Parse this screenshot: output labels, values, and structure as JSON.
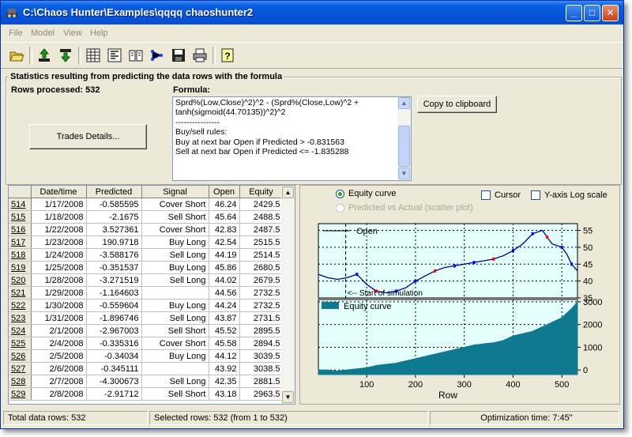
{
  "window": {
    "title": "C:\\Chaos Hunter\\Examples\\qqqq chaoshunter2",
    "minimize": "_",
    "maximize": "□",
    "close": "✕"
  },
  "menu": [
    "File",
    "Model",
    "View",
    "Help"
  ],
  "toolbar_icons": [
    "open-folder-icon",
    "upload-icon",
    "download-icon",
    "table-icon",
    "data-icon",
    "book-icon",
    "network-icon",
    "save-icon",
    "print-icon",
    "help-icon"
  ],
  "stats": {
    "group_title": "Statistics resulting from predicting the data rows with the formula",
    "rows_processed": "Rows processed: 532",
    "formula_label": "Formula:",
    "formula_text": "Sprd%(Low,Close)^2)^2 - (Sprd%(Close,Low)^2 +\ntanh(sigmoid(44.70135))^2)^2\n----------------\nBuy/sell rules:\nBuy at next bar Open if Predicted > -0.831563\nSell at next bar Open if Predicted <= -1.835288",
    "copy_button": "Copy to clipboard",
    "trades_button": "Trades Details..."
  },
  "grid": {
    "columns": [
      "",
      "Date/time",
      "Predicted",
      "Signal",
      "Open",
      "Equity"
    ],
    "rows": [
      [
        "514",
        "1/17/2008",
        "-0.585595",
        "Cover Short",
        "46.24",
        "2429.5"
      ],
      [
        "515",
        "1/18/2008",
        "-2.1675",
        "Sell Short",
        "45.64",
        "2488.5"
      ],
      [
        "516",
        "1/22/2008",
        "3.527361",
        "Cover Short",
        "42.83",
        "2487.5"
      ],
      [
        "517",
        "1/23/2008",
        "190.9718",
        "Buy Long",
        "42.54",
        "2515.5"
      ],
      [
        "518",
        "1/24/2008",
        "-3.588176",
        "Sell Long",
        "44.19",
        "2514.5"
      ],
      [
        "519",
        "1/25/2008",
        "-0.351537",
        "Buy Long",
        "45.86",
        "2680.5"
      ],
      [
        "520",
        "1/28/2008",
        "-3.271519",
        "Sell Long",
        "44.02",
        "2679.5"
      ],
      [
        "521",
        "1/29/2008",
        "-1.164603",
        "",
        "44.56",
        "2732.5"
      ],
      [
        "522",
        "1/30/2008",
        "-0.559604",
        "Buy Long",
        "44.24",
        "2732.5"
      ],
      [
        "523",
        "1/31/2008",
        "-1.896746",
        "Sell Long",
        "43.87",
        "2731.5"
      ],
      [
        "524",
        "2/1/2008",
        "-2.967003",
        "Sell Short",
        "45.52",
        "2895.5"
      ],
      [
        "525",
        "2/4/2008",
        "-0.335316",
        "Cover Short",
        "45.58",
        "2894.5"
      ],
      [
        "526",
        "2/5/2008",
        "-0.34034",
        "Buy Long",
        "44.12",
        "3039.5"
      ],
      [
        "527",
        "2/6/2008",
        "-0.345111",
        "",
        "43.92",
        "3038.5"
      ],
      [
        "528",
        "2/7/2008",
        "-4.300673",
        "Sell Long",
        "42.35",
        "2881.5"
      ],
      [
        "529",
        "2/8/2008",
        "-2.91712",
        "Sell Short",
        "43.18",
        "2963.5"
      ]
    ]
  },
  "chart_panel": {
    "radio_equity": "Equity curve",
    "radio_scatter": "Predicted vs Actual (scatter plot)",
    "cursor_label": "Cursor",
    "ylog_label": "Y-axis Log scale"
  },
  "chart_data": [
    {
      "type": "line",
      "legend": "Open",
      "annotation": "<-- Start of simulation",
      "annotation_x": 57,
      "x": [
        1,
        20,
        40,
        60,
        80,
        100,
        120,
        140,
        160,
        180,
        200,
        220,
        240,
        260,
        280,
        300,
        320,
        340,
        360,
        380,
        400,
        420,
        440,
        460,
        470,
        480,
        500,
        510,
        520,
        532
      ],
      "values": [
        42,
        41,
        40.5,
        41,
        42,
        39,
        37,
        36.5,
        37,
        38,
        40,
        41.5,
        43,
        44,
        44.5,
        45,
        45.5,
        46,
        46.5,
        47.5,
        49,
        51,
        54,
        55,
        53,
        51,
        50,
        48,
        45,
        43
      ],
      "yticks": [
        35,
        40,
        45,
        50,
        55
      ],
      "ylim": [
        35,
        57
      ],
      "xlim": [
        1,
        532
      ],
      "grid": true,
      "colors": {
        "line": "#00008b",
        "buy": "#0000ff",
        "sell": "#ff0000",
        "bg": "#e4fdfd"
      }
    },
    {
      "type": "area",
      "legend": "Equity curve",
      "x": [
        1,
        20,
        40,
        57,
        80,
        100,
        120,
        140,
        160,
        180,
        200,
        220,
        240,
        260,
        280,
        300,
        320,
        340,
        360,
        380,
        400,
        420,
        440,
        460,
        470,
        480,
        500,
        510,
        520,
        532
      ],
      "values": [
        0,
        0,
        -50,
        0,
        50,
        100,
        200,
        250,
        300,
        400,
        500,
        600,
        700,
        800,
        900,
        1000,
        1100,
        1150,
        1200,
        1300,
        1500,
        1600,
        1700,
        1900,
        2000,
        2100,
        2300,
        2500,
        2700,
        3000
      ],
      "yticks": [
        0,
        1000,
        2000,
        3000
      ],
      "xticks": [
        100,
        200,
        300,
        400,
        500
      ],
      "xlabel": "Row",
      "ylim": [
        -200,
        3100
      ],
      "xlim": [
        1,
        532
      ],
      "grid": true,
      "colors": {
        "fill": "#0f7a8f",
        "bg": "#e4fdfd"
      }
    }
  ],
  "status": {
    "total": "Total data rows: 532",
    "selected": "Selected rows: 532  (from 1 to 532)",
    "opt_time": "Optimization time: 7:45\""
  }
}
